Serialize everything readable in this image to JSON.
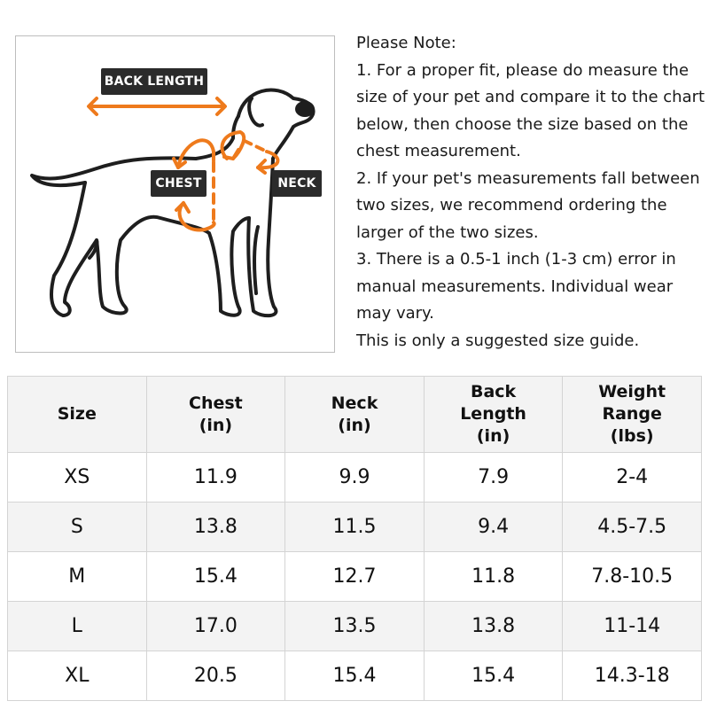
{
  "diagram": {
    "labels": {
      "back_length": "BACK LENGTH",
      "chest": "CHEST",
      "neck": "NECK"
    },
    "colors": {
      "arrow": "#ee7a1c",
      "outline": "#1e1e1e",
      "tag": "#2b2b2b"
    }
  },
  "notes": {
    "lines": [
      "Please Note:",
      "1. For a proper fit, please do measure the",
      "size of your pet and compare it to the chart",
      "below, then choose the size based on the",
      "chest measurement.",
      "2. If your pet's measurements fall between",
      "two sizes, we recommend ordering the",
      "larger of the two sizes.",
      "3. There is a 0.5-1 inch (1-3 cm) error in",
      "manual measurements. Individual wear",
      "may vary.",
      "This is only a suggested size guide."
    ]
  },
  "table": {
    "headers": [
      "Size",
      "Chest\n(in)",
      "Neck\n(in)",
      "Back\nLength\n(in)",
      "Weight\nRange\n(lbs)"
    ],
    "rows": [
      [
        "XS",
        "11.9",
        "9.9",
        "7.9",
        "2-4"
      ],
      [
        "S",
        "13.8",
        "11.5",
        "9.4",
        "4.5-7.5"
      ],
      [
        "M",
        "15.4",
        "12.7",
        "11.8",
        "7.8-10.5"
      ],
      [
        "L",
        "17.0",
        "13.5",
        "13.8",
        "11-14"
      ],
      [
        "XL",
        "20.5",
        "15.4",
        "15.4",
        "14.3-18"
      ]
    ]
  }
}
